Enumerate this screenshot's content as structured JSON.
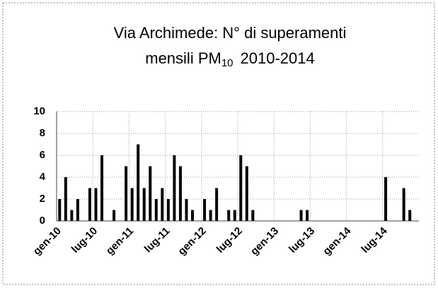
{
  "chart_data": {
    "type": "bar",
    "title": [
      "Via Archimede: N° di superamenti",
      "mensili PM",
      "10",
      "2010-2014"
    ],
    "categories": [
      "gen-10",
      null,
      null,
      null,
      null,
      null,
      "lug-10",
      null,
      null,
      null,
      null,
      null,
      "gen-11",
      null,
      null,
      null,
      null,
      null,
      "lug-11",
      null,
      null,
      null,
      null,
      null,
      "gen-12",
      null,
      null,
      null,
      null,
      null,
      "lug-12",
      null,
      null,
      null,
      null,
      null,
      "gen-13",
      null,
      null,
      null,
      null,
      null,
      "lug-13",
      null,
      null,
      null,
      null,
      null,
      "gen-14",
      null,
      null,
      null,
      null,
      null,
      "lug-14",
      null,
      null,
      null,
      null,
      null
    ],
    "values": [
      2,
      4,
      1,
      2,
      0,
      3,
      3,
      6,
      0,
      1,
      0,
      5,
      3,
      7,
      3,
      5,
      2,
      3,
      2,
      6,
      5,
      2,
      1,
      0,
      2,
      1,
      3,
      0,
      1,
      1,
      6,
      5,
      1,
      0,
      0,
      0,
      0,
      0,
      0,
      0,
      1,
      1,
      0,
      0,
      0,
      0,
      0,
      0,
      0,
      0,
      0,
      0,
      0,
      0,
      4,
      0,
      0,
      3,
      1,
      0
    ],
    "color": "#000000",
    "ylim": [
      0,
      10
    ],
    "yticks": [
      0,
      2,
      4,
      6,
      8,
      10
    ],
    "grid": true
  }
}
